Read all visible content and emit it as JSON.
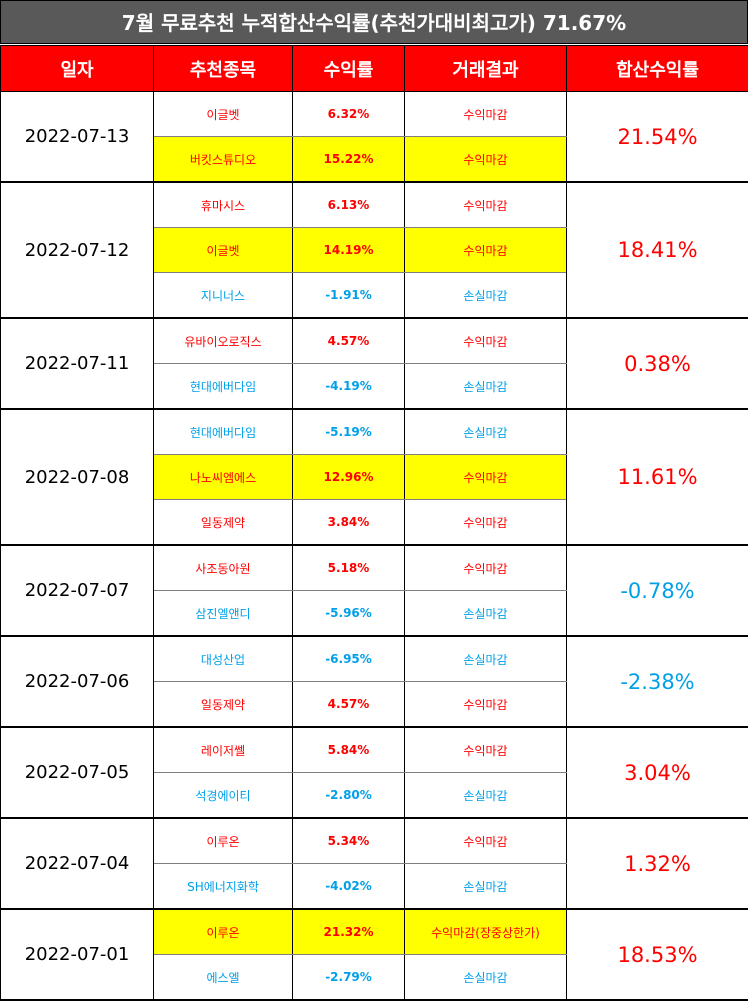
{
  "title": "7월 무료추천 누적합산수익률(추천가대비최고가) 71.67%",
  "headers": [
    "일자",
    "추천종목",
    "수익률",
    "거래결과",
    "합산수익률"
  ],
  "colors": {
    "gain": "#ff0000",
    "loss": "#00a0e9",
    "highlight": "#ffff00",
    "header": "#ff0000",
    "title_bg": "#595959"
  },
  "groups": [
    {
      "date": "2022-07-13",
      "total": "21.54%",
      "total_sign": "pos",
      "rows": [
        {
          "stock": "이글벳",
          "rate": "6.32%",
          "result": "수익마감",
          "sign": "pos",
          "hl": false
        },
        {
          "stock": "버킷스튜디오",
          "rate": "15.22%",
          "result": "수익마감",
          "sign": "pos",
          "hl": true
        }
      ]
    },
    {
      "date": "2022-07-12",
      "total": "18.41%",
      "total_sign": "pos",
      "rows": [
        {
          "stock": "휴마시스",
          "rate": "6.13%",
          "result": "수익마감",
          "sign": "pos",
          "hl": false
        },
        {
          "stock": "이글벳",
          "rate": "14.19%",
          "result": "수익마감",
          "sign": "pos",
          "hl": true
        },
        {
          "stock": "지니너스",
          "rate": "-1.91%",
          "result": "손실마감",
          "sign": "neg",
          "hl": false
        }
      ]
    },
    {
      "date": "2022-07-11",
      "total": "0.38%",
      "total_sign": "pos",
      "rows": [
        {
          "stock": "유바이오로직스",
          "rate": "4.57%",
          "result": "수익마감",
          "sign": "pos",
          "hl": false
        },
        {
          "stock": "현대에버다임",
          "rate": "-4.19%",
          "result": "손실마감",
          "sign": "neg",
          "hl": false
        }
      ]
    },
    {
      "date": "2022-07-08",
      "total": "11.61%",
      "total_sign": "pos",
      "rows": [
        {
          "stock": "현대에버다임",
          "rate": "-5.19%",
          "result": "손실마감",
          "sign": "neg",
          "hl": false
        },
        {
          "stock": "나노씨엠에스",
          "rate": "12.96%",
          "result": "수익마감",
          "sign": "pos",
          "hl": true
        },
        {
          "stock": "일동제약",
          "rate": "3.84%",
          "result": "수익마감",
          "sign": "pos",
          "hl": false
        }
      ]
    },
    {
      "date": "2022-07-07",
      "total": "-0.78%",
      "total_sign": "neg",
      "rows": [
        {
          "stock": "사조동아원",
          "rate": "5.18%",
          "result": "수익마감",
          "sign": "pos",
          "hl": false
        },
        {
          "stock": "삼진엘앤디",
          "rate": "-5.96%",
          "result": "손실마감",
          "sign": "neg",
          "hl": false
        }
      ]
    },
    {
      "date": "2022-07-06",
      "total": "-2.38%",
      "total_sign": "neg",
      "rows": [
        {
          "stock": "대성산업",
          "rate": "-6.95%",
          "result": "손실마감",
          "sign": "neg",
          "hl": false
        },
        {
          "stock": "일동제약",
          "rate": "4.57%",
          "result": "수익마감",
          "sign": "pos",
          "hl": false
        }
      ]
    },
    {
      "date": "2022-07-05",
      "total": "3.04%",
      "total_sign": "pos",
      "rows": [
        {
          "stock": "레이저쎌",
          "rate": "5.84%",
          "result": "수익마감",
          "sign": "pos",
          "hl": false
        },
        {
          "stock": "석경에이티",
          "rate": "-2.80%",
          "result": "손실마감",
          "sign": "neg",
          "hl": false
        }
      ]
    },
    {
      "date": "2022-07-04",
      "total": "1.32%",
      "total_sign": "pos",
      "rows": [
        {
          "stock": "이루온",
          "rate": "5.34%",
          "result": "수익마감",
          "sign": "pos",
          "hl": false
        },
        {
          "stock": "SH에너지화학",
          "rate": "-4.02%",
          "result": "손실마감",
          "sign": "neg",
          "hl": false
        }
      ]
    },
    {
      "date": "2022-07-01",
      "total": "18.53%",
      "total_sign": "pos",
      "rows": [
        {
          "stock": "이루온",
          "rate": "21.32%",
          "result": "수익마감(장중상한가)",
          "sign": "pos",
          "hl": true
        },
        {
          "stock": "에스엘",
          "rate": "-2.79%",
          "result": "손실마감",
          "sign": "neg",
          "hl": false
        }
      ]
    }
  ]
}
